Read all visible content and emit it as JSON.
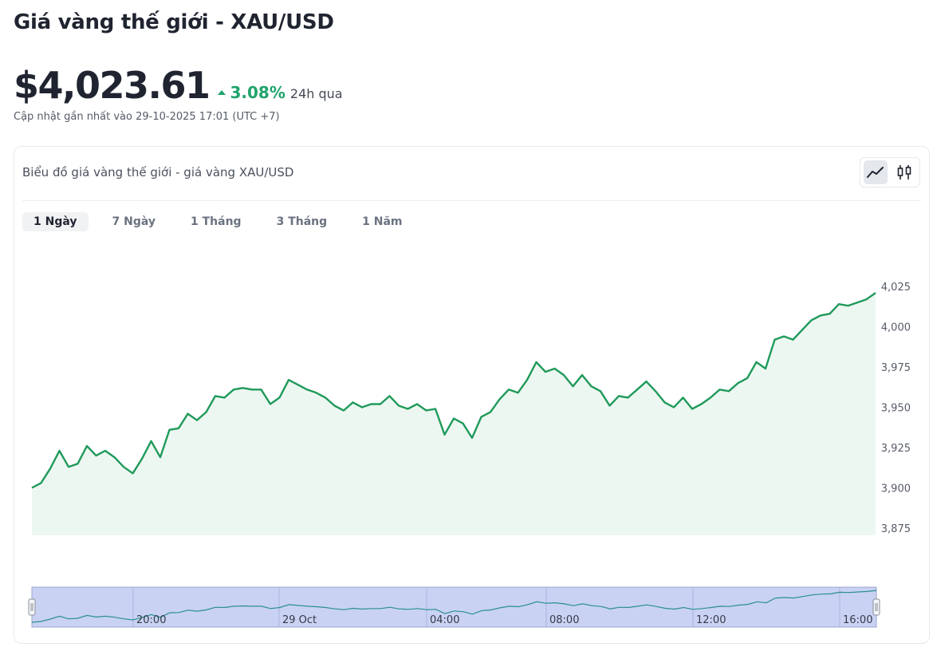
{
  "page": {
    "title": "Giá vàng thế giới - XAU/USD",
    "price": "$4,023.61",
    "change_value": "3.08%",
    "change_period": "24h qua",
    "updated": "Cập nhật gần nhất vào 29-10-2025 17:01 (UTC +7)"
  },
  "card": {
    "title": "Biểu đồ giá vàng thế giới - giá vàng XAU/USD",
    "chart_types": [
      {
        "icon": "line-chart-icon",
        "active": true
      },
      {
        "icon": "candlestick-icon",
        "active": false
      }
    ],
    "tabs": [
      {
        "label": "1 Ngày",
        "active": true
      },
      {
        "label": "7 Ngày",
        "active": false
      },
      {
        "label": "1 Tháng",
        "active": false
      },
      {
        "label": "3 Tháng",
        "active": false
      },
      {
        "label": "1 Năm",
        "active": false
      }
    ]
  },
  "colors": {
    "line": "#1f9a5b",
    "area": "#edf7f1",
    "positive": "#1fa36b",
    "navigator_bg": "#c9d2f3",
    "navigator_line": "#2b8f8f"
  },
  "chart_data": {
    "type": "area",
    "series": [
      {
        "values": [
          3900,
          3903,
          3912,
          3923,
          3913,
          3915,
          3926,
          3920,
          3923,
          3919,
          3913,
          3909,
          3918,
          3929,
          3919,
          3936,
          3937,
          3946,
          3942,
          3947,
          3957,
          3956,
          3961,
          3962,
          3961,
          3961,
          3952,
          3956,
          3967,
          3964,
          3961,
          3959,
          3956,
          3951,
          3948,
          3953,
          3950,
          3952,
          3952,
          3957,
          3951,
          3949,
          3952,
          3948,
          3949,
          3933,
          3943,
          3940,
          3931,
          3944,
          3947,
          3955,
          3961,
          3959,
          3967,
          3978,
          3972,
          3974,
          3970,
          3963,
          3970,
          3963,
          3960,
          3951,
          3957,
          3956,
          3961,
          3966,
          3960,
          3953,
          3950,
          3956,
          3949,
          3952,
          3956,
          3961,
          3960,
          3965,
          3968,
          3978,
          3974,
          3992,
          3994,
          3992,
          3998,
          4004,
          4007,
          4008,
          4014,
          4013,
          4015,
          4017,
          4021
        ]
      }
    ],
    "y_ticks": [
      "4,025",
      "4,000",
      "3,975",
      "3,950",
      "3,925",
      "3,900",
      "3,875"
    ],
    "ylim": [
      3875,
      4028
    ],
    "navigator_labels": [
      "20:00",
      "29 Oct",
      "04:00",
      "08:00",
      "12:00",
      "16:00"
    ],
    "grid": false,
    "legend": "none"
  }
}
